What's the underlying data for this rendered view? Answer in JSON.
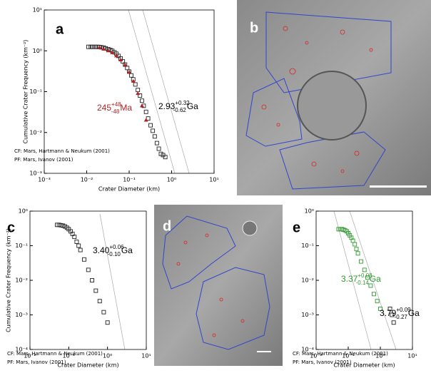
{
  "chart_data": [
    {
      "type": "scatter",
      "panel_label": "a",
      "xlabel": "Crater Diameter (km)",
      "ylabel": "Cumulative Crater Frequency (km⁻²)",
      "log_x": true,
      "log_y": true,
      "xlim": [
        0.001,
        10
      ],
      "ylim": [
        0.001,
        10
      ],
      "xticks": [
        {
          "value": 0.001,
          "label": "10⁻³"
        },
        {
          "value": 0.01,
          "label": "10⁻²"
        },
        {
          "value": 0.1,
          "label": "10⁻¹"
        },
        {
          "value": 1,
          "label": "10⁰"
        },
        {
          "value": 10,
          "label": "10¹"
        }
      ],
      "yticks": [
        {
          "value": 0.001,
          "label": "10⁻³"
        },
        {
          "value": 0.01,
          "label": "10⁻²"
        },
        {
          "value": 0.1,
          "label": "10⁻¹"
        },
        {
          "value": 1,
          "label": "10⁰"
        },
        {
          "value": 10,
          "label": "10¹"
        }
      ],
      "series": [
        {
          "color": "#222222",
          "marker": "square",
          "x": [
            0.011,
            0.0125,
            0.014,
            0.016,
            0.018,
            0.02,
            0.022,
            0.025,
            0.028,
            0.032,
            0.036,
            0.04,
            0.045,
            0.05,
            0.056,
            0.063,
            0.071,
            0.08,
            0.09,
            0.1,
            0.112,
            0.125,
            0.14,
            0.16,
            0.18,
            0.2,
            0.22,
            0.25,
            0.28,
            0.32,
            0.36,
            0.4,
            0.45,
            0.5,
            0.56,
            0.63,
            0.71
          ],
          "values": [
            1.25,
            1.25,
            1.25,
            1.25,
            1.25,
            1.24,
            1.22,
            1.2,
            1.15,
            1.1,
            1.05,
            1.0,
            0.92,
            0.85,
            0.75,
            0.65,
            0.55,
            0.46,
            0.38,
            0.31,
            0.25,
            0.2,
            0.15,
            0.11,
            0.08,
            0.06,
            0.045,
            0.032,
            0.022,
            0.015,
            0.011,
            0.008,
            0.0055,
            0.004,
            0.003,
            0.0028,
            0.0025
          ]
        },
        {
          "color": "#b22222",
          "marker": "triangle",
          "x": [
            0.02,
            0.025,
            0.032,
            0.04,
            0.05,
            0.063,
            0.08,
            0.1,
            0.125,
            0.16,
            0.2,
            0.25
          ],
          "values": [
            1.2,
            1.1,
            1.0,
            0.9,
            0.75,
            0.6,
            0.45,
            0.3,
            0.18,
            0.09,
            0.045,
            0.02
          ]
        }
      ],
      "annotations": [
        {
          "text": "245",
          "sup": "+48",
          "sub": "-48",
          "unit": "Ma",
          "color": "#b22222"
        },
        {
          "text": "2.93",
          "sup": "+0.32",
          "sub": "-0.62",
          "unit": "Ga",
          "color": "#000000"
        }
      ],
      "notes": [
        "CF: Mars, Hartmann & Neukum (2001)",
        "PF: Mars, Ivanov (2001)"
      ]
    },
    {
      "type": "scatter",
      "panel_label": "c",
      "xlabel": "Crater Diameter (km)",
      "ylabel": "Cumulative Crater Frequency (km⁻²)",
      "log_x": true,
      "log_y": true,
      "xlim": [
        0.01,
        10
      ],
      "ylim": [
        0.0001,
        1
      ],
      "xticks": [
        {
          "value": 0.01,
          "label": "10⁻²"
        },
        {
          "value": 0.1,
          "label": "10⁻¹"
        },
        {
          "value": 1,
          "label": "10⁰"
        },
        {
          "value": 10,
          "label": "10¹"
        }
      ],
      "yticks": [
        {
          "value": 0.0001,
          "label": "10⁻⁴"
        },
        {
          "value": 0.001,
          "label": "10⁻³"
        },
        {
          "value": 0.01,
          "label": "10⁻²"
        },
        {
          "value": 0.1,
          "label": "10⁻¹"
        },
        {
          "value": 1,
          "label": "10⁰"
        }
      ],
      "series": [
        {
          "color": "#222222",
          "marker": "square",
          "x": [
            0.05,
            0.056,
            0.063,
            0.071,
            0.08,
            0.09,
            0.1,
            0.112,
            0.125,
            0.14,
            0.16,
            0.18,
            0.2,
            0.25,
            0.32,
            0.4,
            0.5,
            0.63,
            0.8,
            1.0
          ],
          "values": [
            0.4,
            0.4,
            0.39,
            0.38,
            0.36,
            0.33,
            0.3,
            0.26,
            0.22,
            0.18,
            0.13,
            0.1,
            0.075,
            0.04,
            0.02,
            0.01,
            0.005,
            0.0025,
            0.0012,
            0.0006
          ]
        }
      ],
      "annotations": [
        {
          "text": "3.40",
          "sup": "+0.06",
          "sub": "-0.10",
          "unit": "Ga",
          "color": "#000000"
        }
      ],
      "notes": [
        "CF: Mars, Hartmann & Neukum (2001)",
        "PF: Mars, Ivanov (2001)"
      ]
    },
    {
      "type": "scatter",
      "panel_label": "e",
      "xlabel": "Crater Diameter (km)",
      "log_x": true,
      "log_y": true,
      "xlim": [
        0.01,
        10
      ],
      "ylim": [
        0.0001,
        1
      ],
      "xticks": [
        {
          "value": 0.01,
          "label": "10⁻²"
        },
        {
          "value": 0.1,
          "label": "10⁻¹"
        },
        {
          "value": 1,
          "label": "10⁰"
        },
        {
          "value": 10,
          "label": "10¹"
        }
      ],
      "yticks": [
        {
          "value": 0.0001,
          "label": "10⁻⁴"
        },
        {
          "value": 0.001,
          "label": "10⁻³"
        },
        {
          "value": 0.01,
          "label": "10⁻²"
        },
        {
          "value": 0.1,
          "label": "10⁻¹"
        },
        {
          "value": 1,
          "label": "10⁰"
        }
      ],
      "series": [
        {
          "color": "#2e9a2e",
          "marker": "square",
          "x": [
            0.05,
            0.056,
            0.063,
            0.071,
            0.08,
            0.09,
            0.1,
            0.112,
            0.125,
            0.14,
            0.16,
            0.18,
            0.2,
            0.25,
            0.32,
            0.4,
            0.5,
            0.63,
            0.8,
            1.0
          ],
          "values": [
            0.3,
            0.3,
            0.3,
            0.29,
            0.28,
            0.26,
            0.23,
            0.2,
            0.17,
            0.14,
            0.11,
            0.08,
            0.06,
            0.035,
            0.02,
            0.012,
            0.007,
            0.004,
            0.0025,
            0.0015
          ]
        },
        {
          "color": "#222222",
          "marker": "square",
          "x": [
            2.0,
            2.3,
            2.6
          ],
          "values": [
            0.0015,
            0.001,
            0.0006
          ]
        }
      ],
      "annotations": [
        {
          "text": "3.37",
          "sup": "+0.08",
          "sub": "-0.14",
          "unit": "Ga",
          "color": "#2e9a2e"
        },
        {
          "text": "3.79",
          "sup": "+0.09",
          "sub": "-0.27",
          "unit": "Ga",
          "color": "#000000"
        }
      ],
      "notes": [
        "CF: Mars, Hartmann & Neukum (2001)",
        "PF: Mars, Ivanov (2001)"
      ]
    }
  ],
  "images": [
    {
      "label": "b"
    },
    {
      "label": "d"
    }
  ]
}
